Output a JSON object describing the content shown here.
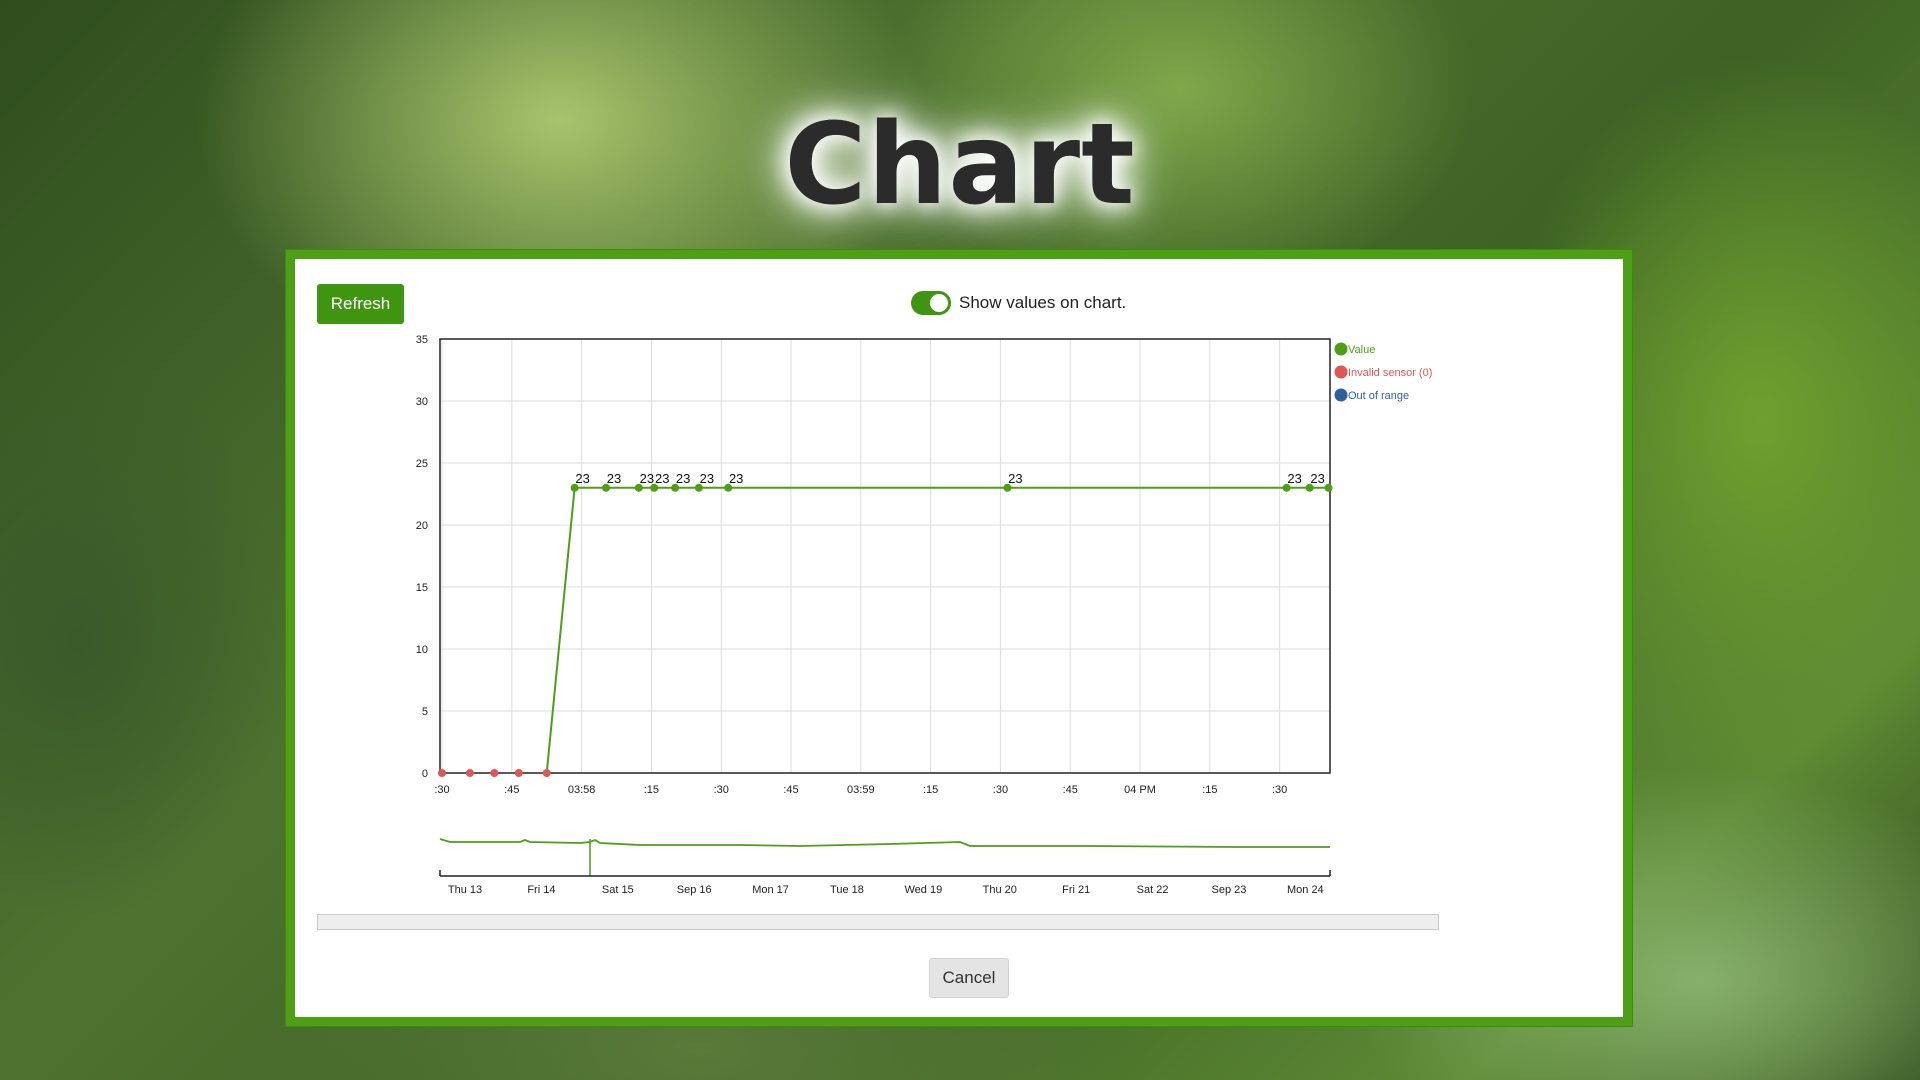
{
  "page": {
    "title": "Chart"
  },
  "dialog": {
    "refresh_label": "Refresh",
    "toggle_label": "Show values on chart.",
    "toggle_on": true,
    "cancel_label": "Cancel"
  },
  "colors": {
    "accent": "#3f9410",
    "value_series": "#4e9e16",
    "invalid_series": "#e05656",
    "out_of_range": "#2f5f9e"
  },
  "chart_data": {
    "type": "line",
    "title": "",
    "ylim": [
      0,
      35
    ],
    "yticks": [
      "0",
      "5",
      "10",
      "15",
      "20",
      "25",
      "30",
      "35"
    ],
    "x_tick_labels": [
      ":30",
      ":45",
      "03:58",
      ":15",
      ":30",
      ":45",
      "03:59",
      ":15",
      ":30",
      ":45",
      "04 PM",
      ":15",
      ":30"
    ],
    "grid": true,
    "legend_position": "right",
    "legend": [
      {
        "name": "Value",
        "color": "#4e9e16"
      },
      {
        "name": "Invalid sensor (0)",
        "color": "#e05656"
      },
      {
        "name": "Out of range",
        "color": "#2f5f9e"
      }
    ],
    "series": [
      {
        "name": "Value",
        "color": "#4e9e16",
        "x": [
          0.3,
          1.9,
          2.35,
          2.82,
          3.04,
          3.34,
          3.68,
          4.1,
          8.1,
          12.1,
          12.43,
          12.7
        ],
        "y": [
          0,
          23,
          23,
          23,
          23,
          23,
          23,
          23,
          23,
          23,
          23,
          23
        ],
        "labels": [
          "",
          "23",
          "23",
          "23",
          "23",
          "23",
          "23",
          "23",
          "23",
          "23",
          "23",
          ""
        ]
      },
      {
        "name": "Invalid sensor (0)",
        "color": "#e05656",
        "x": [
          0.0,
          0.4,
          0.75,
          1.1,
          1.5
        ],
        "y": [
          0,
          0,
          0,
          0,
          0
        ]
      }
    ],
    "navigator": {
      "tick_labels": [
        "Thu 13",
        "Fri 14",
        "Sat 15",
        "Sep 16",
        "Mon 17",
        "Tue 18",
        "Wed 19",
        "Thu 20",
        "Fri 21",
        "Sat 22",
        "Sep 23",
        "Mon 24"
      ]
    }
  }
}
